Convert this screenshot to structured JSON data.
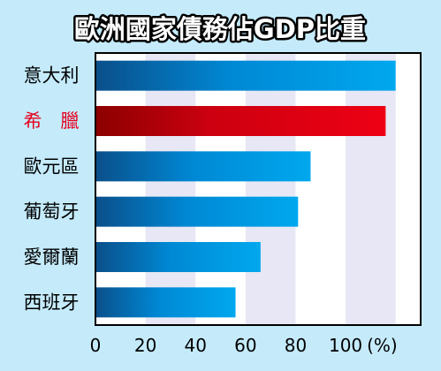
{
  "chart_data": {
    "type": "bar",
    "orientation": "horizontal",
    "title": "歐洲國家債務佔GDP比重",
    "categories": [
      "意大利",
      "希　臘",
      "歐元區",
      "葡萄牙",
      "愛爾蘭",
      "西班牙"
    ],
    "values": [
      120,
      116,
      86,
      81,
      66,
      56
    ],
    "highlight_category": "希　臘",
    "xlim": [
      0,
      130
    ],
    "xticks": [
      "0",
      "20",
      "40",
      "60",
      "80",
      "100"
    ],
    "x_unit": "(%)",
    "grid": "alternating vertical bands",
    "colors": {
      "background": "#c5ebfb",
      "plot_band_light": "#ffffff",
      "plot_band_shaded": "#e7e7f5",
      "bar_dark": "#0a4f8a",
      "bar_light": "#00a8ee",
      "highlight_dark": "#8c0000",
      "highlight_light": "#ee0014",
      "highlight_label": "#e6001e"
    }
  }
}
